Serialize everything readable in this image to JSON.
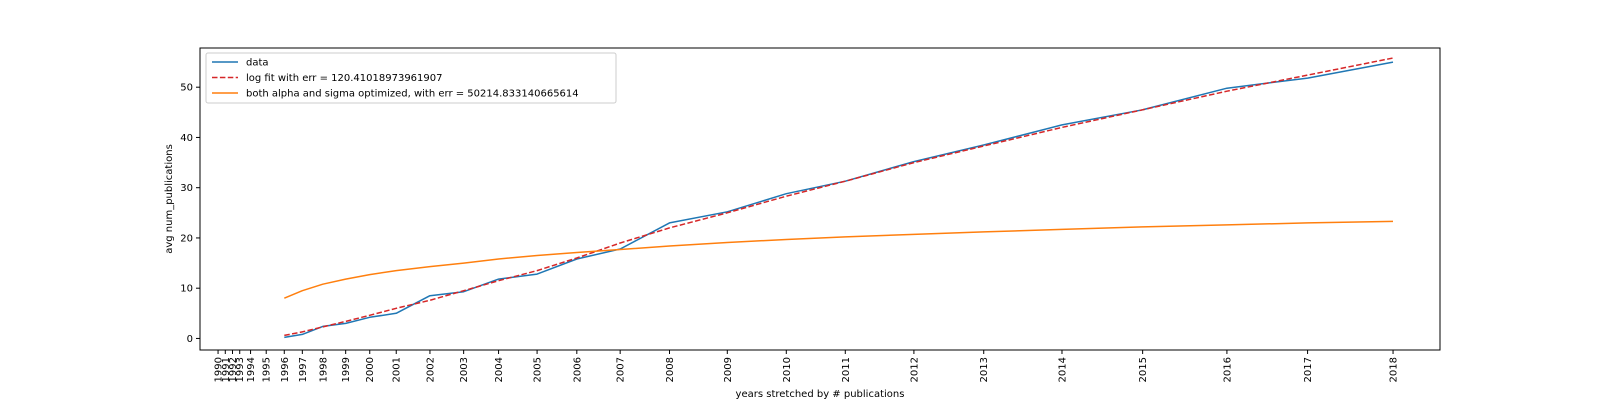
{
  "chart_data": {
    "type": "line",
    "title": "",
    "xlabel": "years stretched by # publications",
    "ylabel": "avg num_publications",
    "ylim": [
      -2.3,
      57.8
    ],
    "grid": false,
    "legend_placement": "top-left",
    "yticks": [
      0,
      10,
      20,
      30,
      40,
      50
    ],
    "xticks": [
      {
        "label": "1990",
        "pos": 0
      },
      {
        "label": "1991",
        "pos": 0.6
      },
      {
        "label": "1992",
        "pos": 1.2
      },
      {
        "label": "1993",
        "pos": 1.8
      },
      {
        "label": "1994",
        "pos": 2.7
      },
      {
        "label": "1995",
        "pos": 4.0
      },
      {
        "label": "1996",
        "pos": 5.5
      },
      {
        "label": "1997",
        "pos": 7.0
      },
      {
        "label": "1998",
        "pos": 8.7
      },
      {
        "label": "1999",
        "pos": 10.6
      },
      {
        "label": "2000",
        "pos": 12.6
      },
      {
        "label": "2001",
        "pos": 14.8
      },
      {
        "label": "2002",
        "pos": 17.6
      },
      {
        "label": "2003",
        "pos": 20.4
      },
      {
        "label": "2004",
        "pos": 23.3
      },
      {
        "label": "2005",
        "pos": 26.5
      },
      {
        "label": "2006",
        "pos": 29.8
      },
      {
        "label": "2007",
        "pos": 33.4
      },
      {
        "label": "2008",
        "pos": 37.5
      },
      {
        "label": "2009",
        "pos": 42.3
      },
      {
        "label": "2010",
        "pos": 47.2
      },
      {
        "label": "2011",
        "pos": 52.1
      },
      {
        "label": "2012",
        "pos": 57.8
      },
      {
        "label": "2013",
        "pos": 63.6
      },
      {
        "label": "2014",
        "pos": 70.1
      },
      {
        "label": "2015",
        "pos": 76.8
      },
      {
        "label": "2016",
        "pos": 83.8
      },
      {
        "label": "2017",
        "pos": 90.5
      },
      {
        "label": "2018",
        "pos": 97.6
      }
    ],
    "series": [
      {
        "name": "data",
        "color": "#1f77b4",
        "style": "solid",
        "x": [
          5.5,
          7.0,
          8.7,
          10.6,
          12.6,
          14.8,
          17.6,
          20.4,
          23.3,
          26.5,
          29.8,
          33.4,
          37.5,
          42.3,
          47.2,
          52.1,
          57.8,
          63.6,
          70.1,
          76.8,
          83.8,
          90.5,
          97.6
        ],
        "y": [
          0.2,
          0.8,
          2.4,
          3.0,
          4.2,
          5.0,
          8.5,
          9.3,
          11.8,
          12.8,
          15.8,
          17.8,
          23.0,
          25.2,
          28.8,
          31.3,
          35.2,
          38.5,
          42.5,
          45.5,
          49.8,
          51.8,
          55.0
        ]
      },
      {
        "name": "log fit with err = 120.41018973961907",
        "color": "#d62728",
        "style": "dashed",
        "x": [
          5.5,
          7.0,
          8.7,
          10.6,
          12.6,
          14.8,
          17.6,
          20.4,
          23.3,
          26.5,
          29.8,
          33.4,
          37.5,
          42.3,
          47.2,
          52.1,
          57.8,
          63.6,
          70.1,
          76.8,
          83.8,
          90.5,
          97.6
        ],
        "y": [
          0.6,
          1.3,
          2.3,
          3.4,
          4.6,
          6.0,
          7.6,
          9.5,
          11.5,
          13.5,
          16.0,
          19.0,
          22.0,
          25.0,
          28.3,
          31.3,
          35.0,
          38.3,
          42.0,
          45.5,
          49.2,
          52.4,
          55.8
        ]
      },
      {
        "name": "both alpha and sigma optimized, with err = 50214.833140665614",
        "color": "#ff7f0e",
        "style": "solid",
        "x": [
          5.5,
          7.0,
          8.7,
          10.6,
          12.6,
          14.8,
          17.6,
          20.4,
          23.3,
          26.5,
          29.8,
          33.4,
          37.5,
          42.3,
          47.2,
          52.1,
          57.8,
          63.6,
          70.1,
          76.8,
          83.8,
          90.5,
          97.6
        ],
        "y": [
          8.0,
          9.5,
          10.8,
          11.8,
          12.7,
          13.5,
          14.3,
          15.0,
          15.8,
          16.5,
          17.1,
          17.7,
          18.4,
          19.1,
          19.7,
          20.2,
          20.7,
          21.2,
          21.7,
          22.2,
          22.6,
          23.0,
          23.3
        ]
      }
    ]
  }
}
